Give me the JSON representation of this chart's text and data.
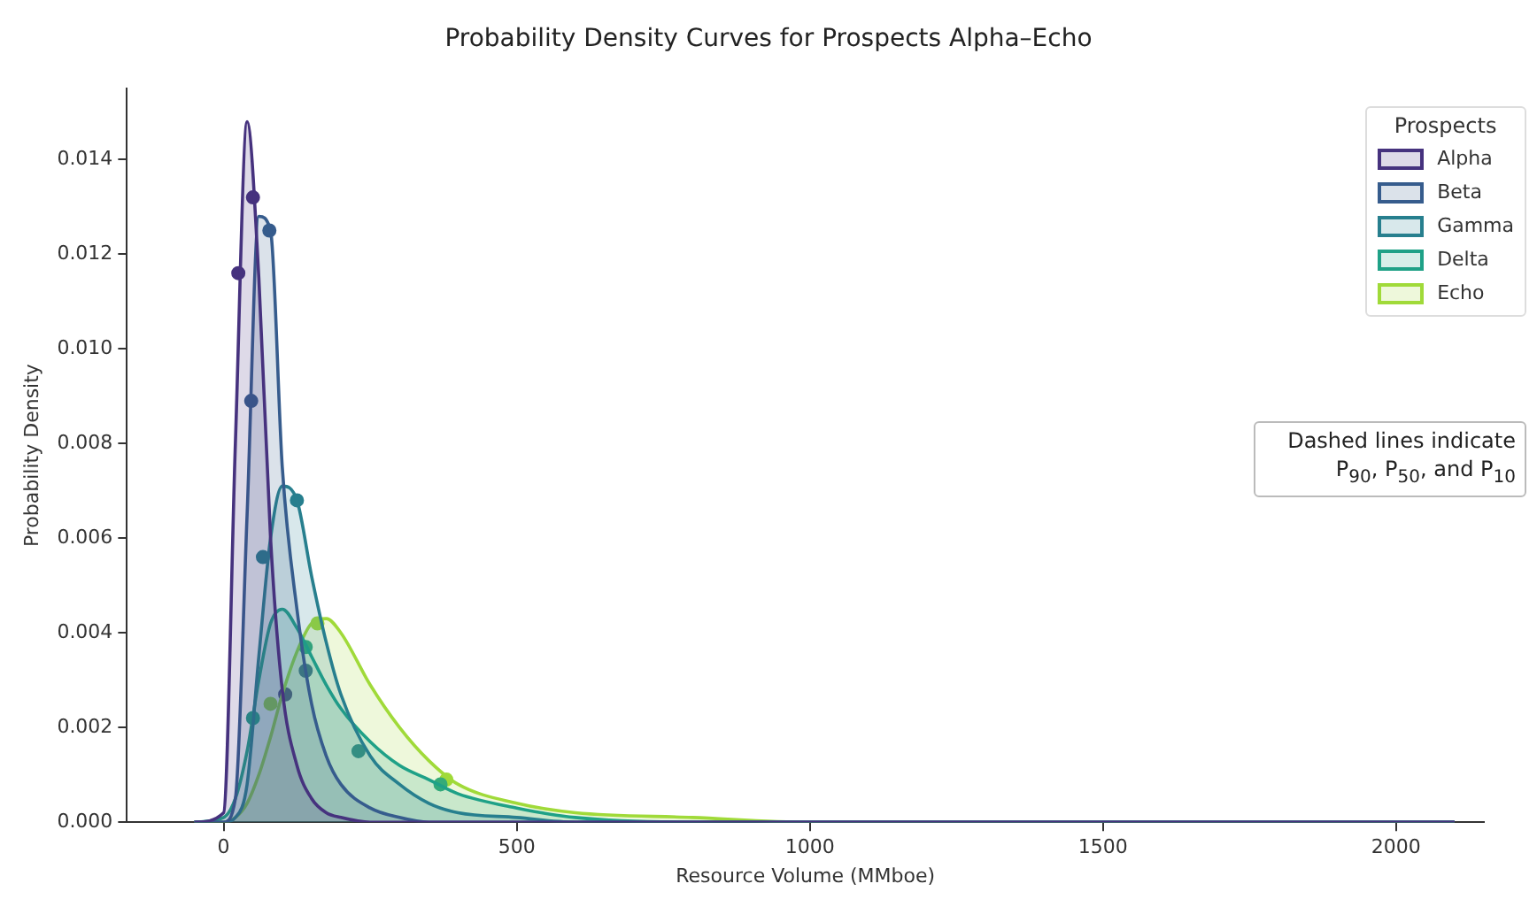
{
  "chart_data": {
    "type": "area",
    "title": "Probability Density Curves for Prospects Alpha–Echo",
    "xlabel": "Resource Volume (MMboe)",
    "ylabel": "Probability Density",
    "legend_title": "Prospects",
    "legend": "top right",
    "grid": false,
    "x": [
      -50,
      0,
      20,
      40,
      60,
      80,
      100,
      125,
      150,
      175,
      200,
      250,
      300,
      350,
      400,
      500,
      600,
      800,
      1000,
      1500,
      2100
    ],
    "series": [
      {
        "name": "Alpha",
        "color": "#46327e",
        "values": [
          0,
          0.0002,
          0.008,
          0.0148,
          0.0115,
          0.006,
          0.0028,
          0.0012,
          0.0005,
          0.0002,
          0.0001,
          0,
          0,
          0,
          0,
          0,
          0,
          0,
          0,
          0,
          0
        ]
      },
      {
        "name": "Beta",
        "color": "#365c8d",
        "values": [
          0,
          0,
          0.0005,
          0.0065,
          0.0128,
          0.0125,
          0.0075,
          0.0045,
          0.0025,
          0.0014,
          0.0008,
          0.0003,
          0.0001,
          0,
          0,
          0,
          0,
          0,
          0,
          0,
          0
        ]
      },
      {
        "name": "Gamma",
        "color": "#277f8e",
        "values": [
          0,
          0,
          0.0001,
          0.0008,
          0.0035,
          0.006,
          0.0071,
          0.0068,
          0.0052,
          0.0038,
          0.0027,
          0.0014,
          0.0008,
          0.0004,
          0.0002,
          0.0001,
          0,
          0,
          0,
          0,
          0
        ]
      },
      {
        "name": "Delta",
        "color": "#1fa187",
        "values": [
          0,
          0.0001,
          0.0005,
          0.0015,
          0.003,
          0.0042,
          0.0045,
          0.0041,
          0.0035,
          0.0029,
          0.0024,
          0.0017,
          0.0012,
          0.0009,
          0.0006,
          0.0003,
          0.0001,
          0,
          0,
          0,
          0
        ]
      },
      {
        "name": "Echo",
        "color": "#a0da39",
        "values": [
          0,
          0,
          0.0001,
          0.0004,
          0.001,
          0.0018,
          0.0027,
          0.0036,
          0.0042,
          0.0043,
          0.004,
          0.0029,
          0.002,
          0.0013,
          0.0008,
          0.0004,
          0.0002,
          0.0001,
          0,
          0,
          0
        ]
      },
      {
        "type": "scatter",
        "marker": "circle",
        "color": "#46327e",
        "x": [
          25,
          50,
          105
        ],
        "values": [
          0.0116,
          0.0132,
          0.0027
        ]
      },
      {
        "type": "scatter",
        "marker": "circle",
        "color": "#365c8d",
        "x": [
          47,
          78,
          140
        ],
        "values": [
          0.0089,
          0.0125,
          0.0032
        ]
      },
      {
        "type": "scatter",
        "marker": "circle",
        "color": "#277f8e",
        "x": [
          67,
          125,
          230
        ],
        "values": [
          0.0056,
          0.0068,
          0.0015
        ]
      },
      {
        "type": "scatter",
        "marker": "circle",
        "color": "#1fa187",
        "x": [
          50,
          140,
          370
        ],
        "values": [
          0.0022,
          0.0037,
          0.0008
        ]
      },
      {
        "type": "scatter",
        "marker": "circle",
        "color": "#a0da39",
        "x": [
          80,
          160,
          380
        ],
        "values": [
          0.0025,
          0.0042,
          0.0009
        ]
      }
    ],
    "xlim": [
      -165,
      2150
    ],
    "xticks": [
      0,
      500,
      1000,
      1500,
      2000
    ],
    "ylim": [
      0,
      0.0155
    ],
    "yticks": [
      {
        "value": 0,
        "label": "0.000"
      },
      {
        "value": 0.002,
        "label": "0.002"
      },
      {
        "value": 0.004,
        "label": "0.004"
      },
      {
        "value": 0.006,
        "label": "0.006"
      },
      {
        "value": 0.008,
        "label": "0.008"
      },
      {
        "value": 0.01,
        "label": "0.010"
      },
      {
        "value": 0.012,
        "label": "0.012"
      },
      {
        "value": 0.014,
        "label": "0.014"
      }
    ],
    "annotations": [
      "Dashed lines indicate P$_{90}$, P$_{50}$, and P$_{10}$"
    ]
  }
}
